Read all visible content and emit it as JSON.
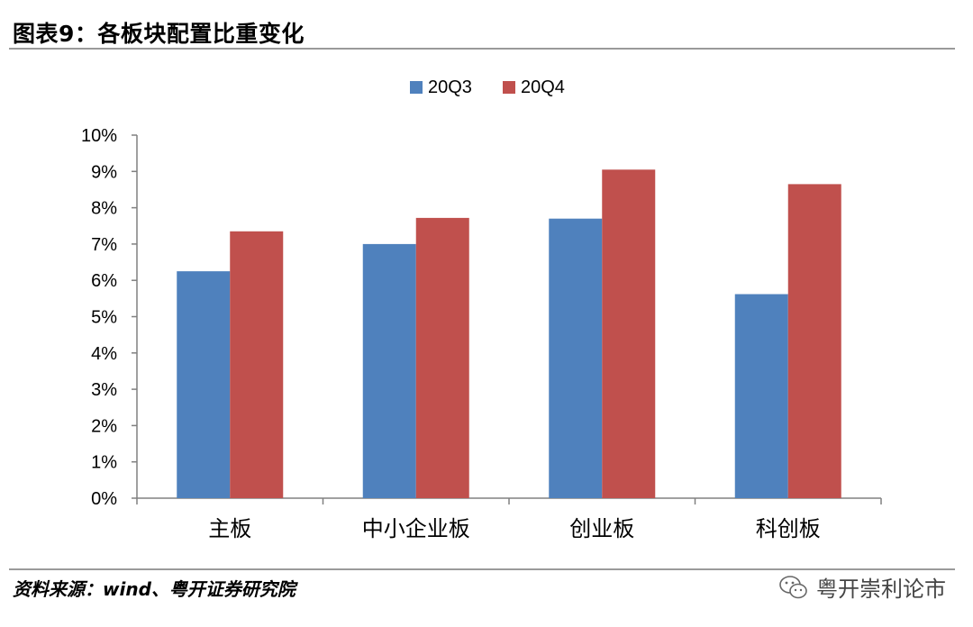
{
  "title": "图表9：各板块配置比重变化",
  "source": "资料来源：wind、粤开证券研究院",
  "watermark": {
    "text": "粤开崇利论市",
    "icon": "wechat-icon"
  },
  "chart_data": {
    "type": "bar",
    "categories": [
      "主板",
      "中小企业板",
      "创业板",
      "科创板"
    ],
    "series": [
      {
        "name": "20Q3",
        "color": "#4f81bd",
        "values": [
          6.25,
          7.0,
          7.7,
          5.62
        ]
      },
      {
        "name": "20Q4",
        "color": "#c0504d",
        "values": [
          7.35,
          7.72,
          9.05,
          8.65
        ]
      }
    ],
    "yticks": [
      "0%",
      "1%",
      "2%",
      "3%",
      "4%",
      "5%",
      "6%",
      "7%",
      "8%",
      "9%",
      "10%"
    ],
    "ylim": [
      0,
      10
    ],
    "unit": "%",
    "legend_position": "top-center",
    "grid": false
  }
}
